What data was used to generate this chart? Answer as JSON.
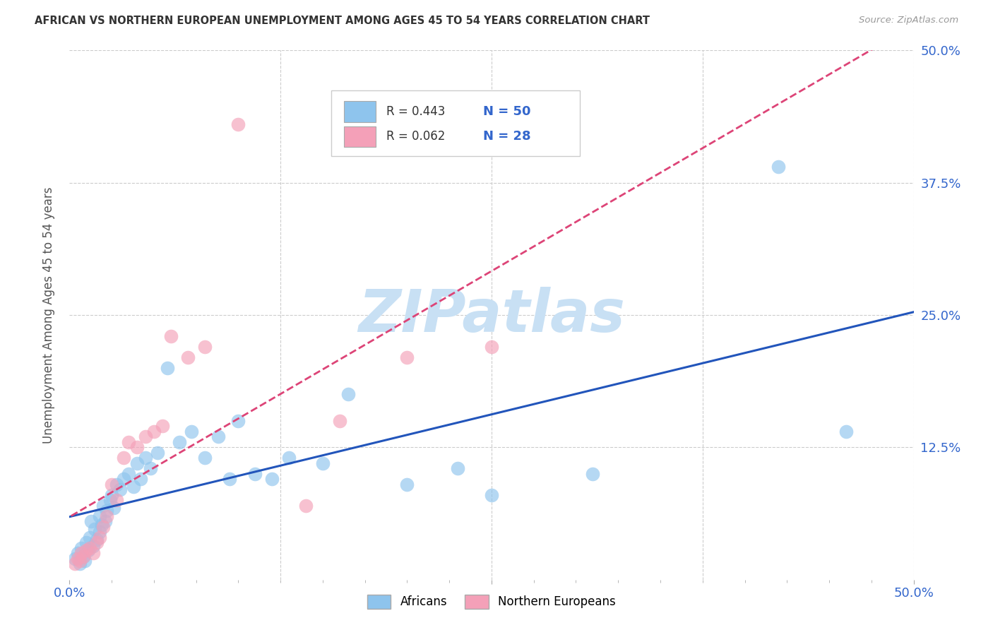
{
  "title": "AFRICAN VS NORTHERN EUROPEAN UNEMPLOYMENT AMONG AGES 45 TO 54 YEARS CORRELATION CHART",
  "source": "Source: ZipAtlas.com",
  "ylabel": "Unemployment Among Ages 45 to 54 years",
  "xlim": [
    0,
    0.5
  ],
  "ylim": [
    0,
    0.5
  ],
  "grid_color": "#cccccc",
  "background_color": "#ffffff",
  "africans_color": "#8EC4ED",
  "northern_europeans_color": "#F4A0B8",
  "africans_line_color": "#2255BB",
  "northern_europeans_line_color": "#DD4477",
  "watermark_color": "#C8E0F4",
  "tick_label_color": "#3366CC",
  "title_color": "#333333",
  "source_color": "#999999",
  "africans_x": [
    0.003,
    0.005,
    0.006,
    0.007,
    0.008,
    0.009,
    0.01,
    0.011,
    0.012,
    0.013,
    0.014,
    0.015,
    0.016,
    0.018,
    0.018,
    0.019,
    0.02,
    0.021,
    0.022,
    0.024,
    0.025,
    0.026,
    0.028,
    0.03,
    0.032,
    0.035,
    0.038,
    0.04,
    0.042,
    0.045,
    0.048,
    0.052,
    0.058,
    0.065,
    0.072,
    0.08,
    0.088,
    0.095,
    0.1,
    0.11,
    0.12,
    0.13,
    0.15,
    0.165,
    0.2,
    0.23,
    0.25,
    0.31,
    0.42,
    0.46
  ],
  "africans_y": [
    0.02,
    0.025,
    0.015,
    0.03,
    0.022,
    0.018,
    0.035,
    0.028,
    0.04,
    0.055,
    0.032,
    0.048,
    0.038,
    0.06,
    0.045,
    0.052,
    0.07,
    0.055,
    0.065,
    0.075,
    0.08,
    0.068,
    0.09,
    0.085,
    0.095,
    0.1,
    0.088,
    0.11,
    0.095,
    0.115,
    0.105,
    0.12,
    0.2,
    0.13,
    0.14,
    0.115,
    0.135,
    0.095,
    0.15,
    0.1,
    0.095,
    0.115,
    0.11,
    0.175,
    0.09,
    0.105,
    0.08,
    0.1,
    0.39,
    0.14
  ],
  "northern_europeans_x": [
    0.003,
    0.005,
    0.006,
    0.007,
    0.008,
    0.01,
    0.012,
    0.014,
    0.016,
    0.018,
    0.02,
    0.022,
    0.025,
    0.028,
    0.032,
    0.035,
    0.04,
    0.045,
    0.05,
    0.055,
    0.06,
    0.07,
    0.08,
    0.1,
    0.14,
    0.16,
    0.2,
    0.25
  ],
  "northern_europeans_y": [
    0.015,
    0.02,
    0.018,
    0.025,
    0.022,
    0.028,
    0.03,
    0.025,
    0.035,
    0.04,
    0.05,
    0.06,
    0.09,
    0.075,
    0.115,
    0.13,
    0.125,
    0.135,
    0.14,
    0.145,
    0.23,
    0.21,
    0.22,
    0.43,
    0.07,
    0.15,
    0.21,
    0.22
  ],
  "legend_R_african": "R = 0.443",
  "legend_N_african": "N = 50",
  "legend_R_northern": "R = 0.062",
  "legend_N_northern": "N = 28"
}
